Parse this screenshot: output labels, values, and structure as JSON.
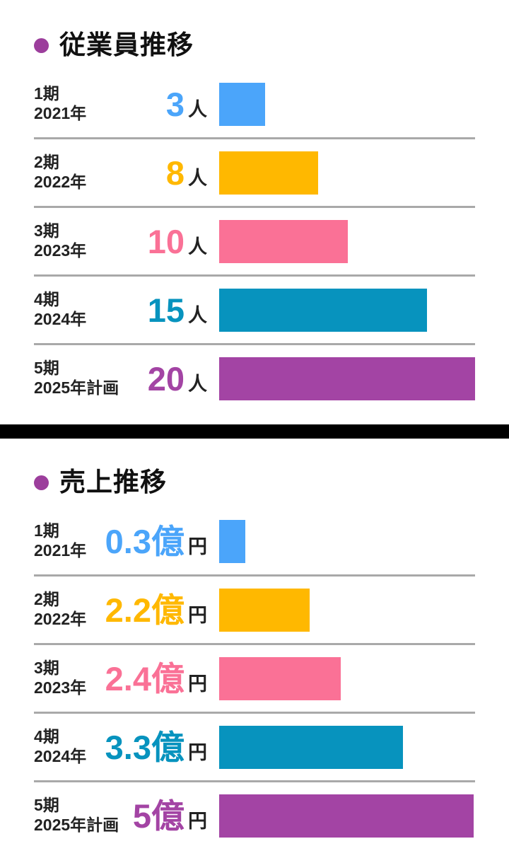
{
  "theme": {
    "bullet_color": "#9C3E9C",
    "divider_color": "#A9A9A9",
    "separator_color": "#000000",
    "label_color": "#222222",
    "title_color": "#111111",
    "background": "#FFFFFF"
  },
  "chart_data": [
    {
      "type": "bar",
      "orientation": "horizontal",
      "title": "従業員推移",
      "ylabel": "",
      "xlabel": "",
      "unit": "人",
      "grid": false,
      "legend": false,
      "xlim": [
        0,
        20
      ],
      "categories": [
        "1期 2021年",
        "2期 2022年",
        "3期 2023年",
        "4期 2024年",
        "5期 2025年計画"
      ],
      "values": [
        3,
        8,
        10,
        15,
        20
      ],
      "rows": [
        {
          "period": "1期",
          "year": "2021年",
          "num": "3",
          "unit": "人",
          "color": "#4BA5FA",
          "bar_pct": 18.0
        },
        {
          "period": "2期",
          "year": "2022年",
          "num": "8",
          "unit": "人",
          "color": "#FFB800",
          "bar_pct": 38.7
        },
        {
          "period": "3期",
          "year": "2023年",
          "num": "10",
          "unit": "人",
          "color": "#FA7196",
          "bar_pct": 50.3
        },
        {
          "period": "4期",
          "year": "2024年",
          "num": "15",
          "unit": "人",
          "color": "#0793BE",
          "bar_pct": 81.2
        },
        {
          "period": "5期",
          "year": "2025年計画",
          "num": "20",
          "unit": "人",
          "color": "#A344A4",
          "bar_pct": 100
        }
      ]
    },
    {
      "type": "bar",
      "orientation": "horizontal",
      "title": "売上推移",
      "ylabel": "",
      "xlabel": "",
      "unit": "億円",
      "grid": false,
      "legend": false,
      "xlim": [
        0,
        5
      ],
      "categories": [
        "1期 2021年",
        "2期 2022年",
        "3期 2023年",
        "4期 2024年",
        "5期 2025年計画"
      ],
      "values": [
        0.3,
        2.2,
        2.4,
        3.3,
        5
      ],
      "rows": [
        {
          "period": "1期",
          "year": "2021年",
          "num": "0.3億",
          "unit": "円",
          "color": "#4BA5FA",
          "bar_pct": 10.2
        },
        {
          "period": "2期",
          "year": "2022年",
          "num": "2.2億",
          "unit": "円",
          "color": "#FFB800",
          "bar_pct": 35.4
        },
        {
          "period": "3期",
          "year": "2023年",
          "num": "2.4億",
          "unit": "円",
          "color": "#FA7196",
          "bar_pct": 47.5
        },
        {
          "period": "4期",
          "year": "2024年",
          "num": "3.3億",
          "unit": "円",
          "color": "#0793BE",
          "bar_pct": 71.8
        },
        {
          "period": "5期",
          "year": "2025年計画",
          "num": "5億",
          "unit": "円",
          "color": "#A344A4",
          "bar_pct": 99.4
        }
      ]
    }
  ]
}
